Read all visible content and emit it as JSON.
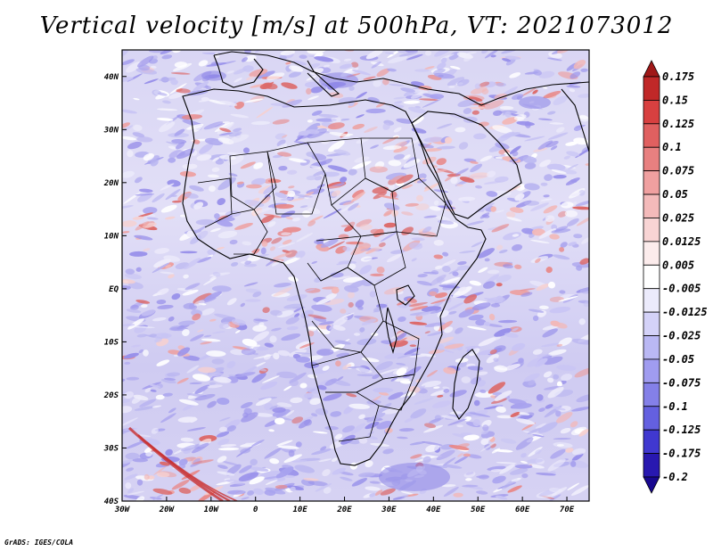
{
  "title": "Vertical velocity [m/s] at 500hPa, VT: 2021073012",
  "credit": "GrADS: IGES/COLA",
  "map": {
    "lat_labels": [
      "40N",
      "30N",
      "20N",
      "10N",
      "EQ",
      "10S",
      "20S",
      "30S",
      "40S"
    ],
    "lon_labels": [
      "30W",
      "20W",
      "10W",
      "0",
      "10E",
      "20E",
      "30E",
      "40E",
      "50E",
      "60E",
      "70E"
    ],
    "extent": {
      "lon_min": -30,
      "lon_max": 75,
      "lat_min": -40,
      "lat_max": 45
    }
  },
  "colorbar": {
    "levels": [
      "0.175",
      "0.15",
      "0.125",
      "0.1",
      "0.075",
      "0.05",
      "0.025",
      "0.0125",
      "0.005",
      "-0.005",
      "-0.0125",
      "-0.025",
      "-0.05",
      "-0.075",
      "-0.1",
      "-0.125",
      "-0.175",
      "-0.2"
    ],
    "colors": [
      "#a01818",
      "#c02828",
      "#d84040",
      "#e06060",
      "#e88080",
      "#f0a0a0",
      "#f4baba",
      "#f8d4d4",
      "#fcecec",
      "#ffffff",
      "#ecebfc",
      "#d4d2f8",
      "#bab8f4",
      "#a09cf0",
      "#8480e8",
      "#6460e0",
      "#4038d0",
      "#2818b0",
      "#180890"
    ]
  }
}
